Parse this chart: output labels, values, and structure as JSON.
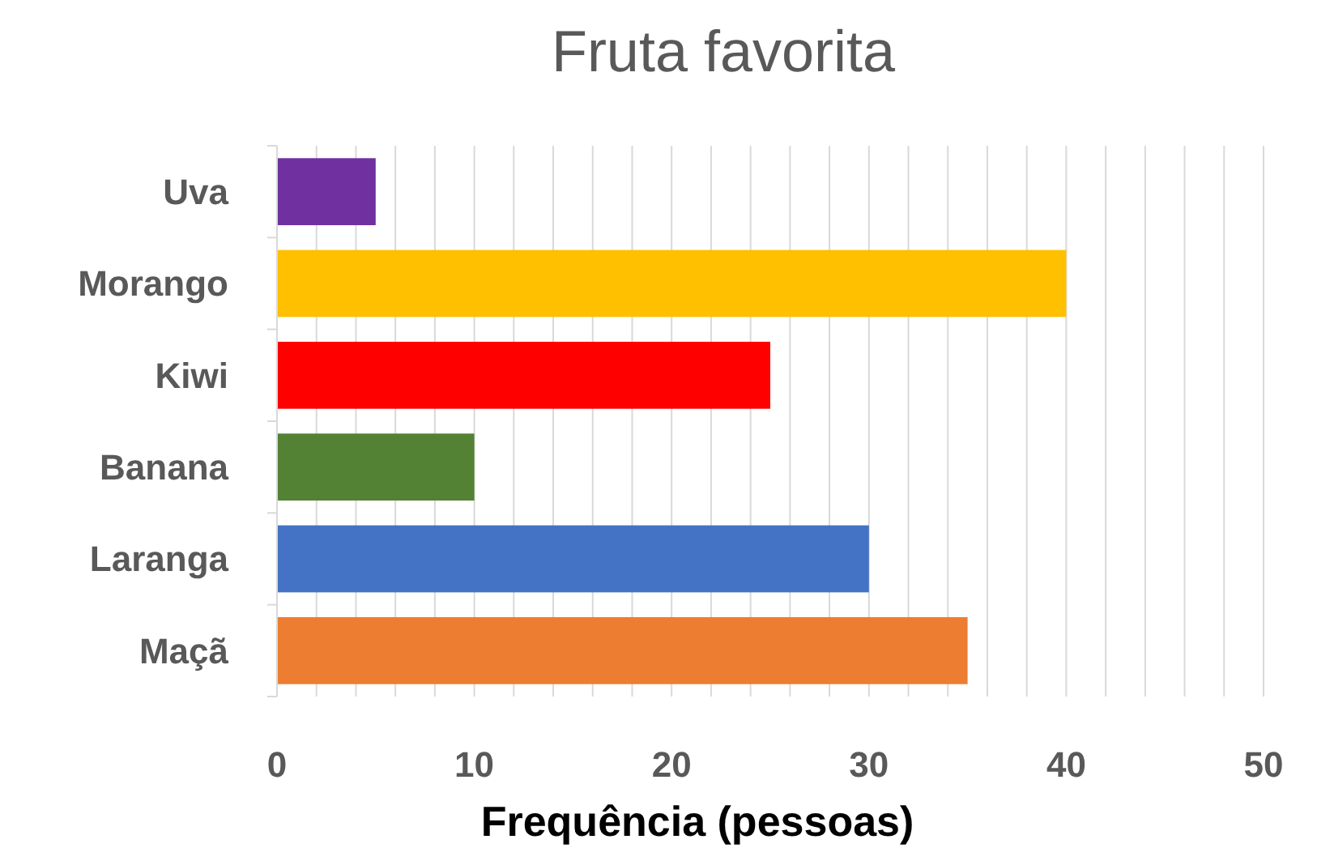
{
  "chart_data": {
    "type": "bar",
    "orientation": "horizontal",
    "title": "Fruta favorita",
    "xlabel": "Frequência (pessoas)",
    "categories": [
      "Uva",
      "Morango",
      "Kiwi",
      "Banana",
      "Laranga",
      "Maçã"
    ],
    "values": [
      5,
      40,
      25,
      10,
      30,
      35
    ],
    "colors": [
      "#7030a0",
      "#ffc000",
      "#ff0000",
      "#548235",
      "#4472c4",
      "#ed7d31"
    ],
    "xlim": [
      0,
      50
    ],
    "xticks": [
      0,
      {
        "value": 2,
        "label": null
      },
      {
        "value": 4,
        "label": null
      },
      {
        "value": 6,
        "label": null
      },
      {
        "value": 8,
        "label": null
      },
      10,
      {
        "value": 12,
        "label": null
      },
      {
        "value": 14,
        "label": null
      },
      {
        "value": 16,
        "label": null
      },
      {
        "value": 18,
        "label": null
      },
      20,
      {
        "value": 22,
        "label": null
      },
      {
        "value": 24,
        "label": null
      },
      {
        "value": 26,
        "label": null
      },
      {
        "value": 28,
        "label": null
      },
      30,
      {
        "value": 32,
        "label": null
      },
      {
        "value": 34,
        "label": null
      },
      {
        "value": 36,
        "label": null
      },
      {
        "value": 38,
        "label": null
      },
      40,
      {
        "value": 42,
        "label": null
      },
      {
        "value": 44,
        "label": null
      },
      {
        "value": 46,
        "label": null
      },
      {
        "value": 48,
        "label": null
      },
      50
    ],
    "grid": "x"
  }
}
